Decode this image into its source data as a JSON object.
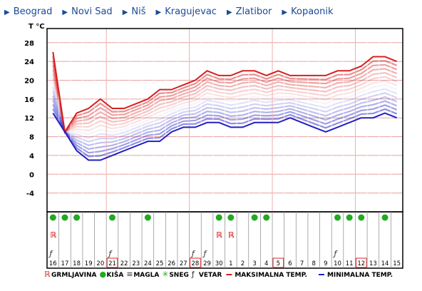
{
  "nav": [
    "Beograd",
    "Novi Sad",
    "Niš",
    "Kragujevac",
    "Zlatibor",
    "Kopaonik"
  ],
  "chart_data": {
    "type": "line",
    "y_label": "T °C",
    "categories": [
      "16",
      "17",
      "18",
      "19",
      "20",
      "21",
      "22",
      "23",
      "24",
      "25",
      "26",
      "27",
      "28",
      "29",
      "30",
      "1",
      "2",
      "3",
      "4",
      "5",
      "6",
      "7",
      "8",
      "9",
      "10",
      "11",
      "12",
      "13",
      "14",
      "15"
    ],
    "series": [
      {
        "name": "MAKSIMALNA TEMP.",
        "color": "#d42020",
        "values": [
          26,
          9,
          13,
          14,
          16,
          14,
          14,
          15,
          16,
          18,
          18,
          19,
          20,
          22,
          21,
          21,
          22,
          22,
          21,
          22,
          21,
          21,
          21,
          21,
          22,
          22,
          23,
          25,
          25,
          24
        ]
      },
      {
        "name": "MINIMALNA TEMP.",
        "color": "#2020c0",
        "values": [
          13,
          9,
          5,
          3,
          3,
          4,
          5,
          6,
          7,
          7,
          9,
          10,
          10,
          11,
          11,
          10,
          10,
          11,
          11,
          11,
          12,
          11,
          10,
          9,
          10,
          11,
          12,
          12,
          13,
          12
        ]
      }
    ],
    "ylim": [
      -8,
      31
    ],
    "yticks": [
      -4,
      0,
      4,
      8,
      12,
      16,
      20,
      24,
      28
    ],
    "grid": true,
    "week_start": [
      false,
      false,
      false,
      false,
      false,
      true,
      false,
      false,
      false,
      false,
      false,
      false,
      true,
      false,
      false,
      false,
      false,
      false,
      false,
      true,
      false,
      false,
      false,
      false,
      false,
      false,
      true,
      false,
      false,
      false
    ],
    "weather_legend": [
      "GRMLJAVINA",
      "KIŠA",
      "MAGLA",
      "SNEG",
      "VETAR"
    ],
    "thunder": [
      true,
      false,
      false,
      false,
      false,
      false,
      false,
      false,
      false,
      false,
      false,
      false,
      false,
      false,
      true,
      true,
      false,
      false,
      false,
      false,
      false,
      false,
      false,
      false,
      false,
      false,
      false,
      false,
      false,
      false
    ],
    "rain": [
      true,
      true,
      true,
      false,
      false,
      true,
      false,
      false,
      true,
      false,
      false,
      false,
      false,
      false,
      true,
      true,
      false,
      true,
      true,
      false,
      false,
      false,
      false,
      false,
      true,
      true,
      true,
      false,
      true,
      false
    ],
    "wind": [
      true,
      false,
      false,
      false,
      false,
      true,
      false,
      false,
      false,
      false,
      false,
      false,
      true,
      true,
      false,
      false,
      false,
      false,
      false,
      false,
      false,
      false,
      false,
      false,
      true,
      false,
      false,
      false,
      false,
      false
    ]
  }
}
